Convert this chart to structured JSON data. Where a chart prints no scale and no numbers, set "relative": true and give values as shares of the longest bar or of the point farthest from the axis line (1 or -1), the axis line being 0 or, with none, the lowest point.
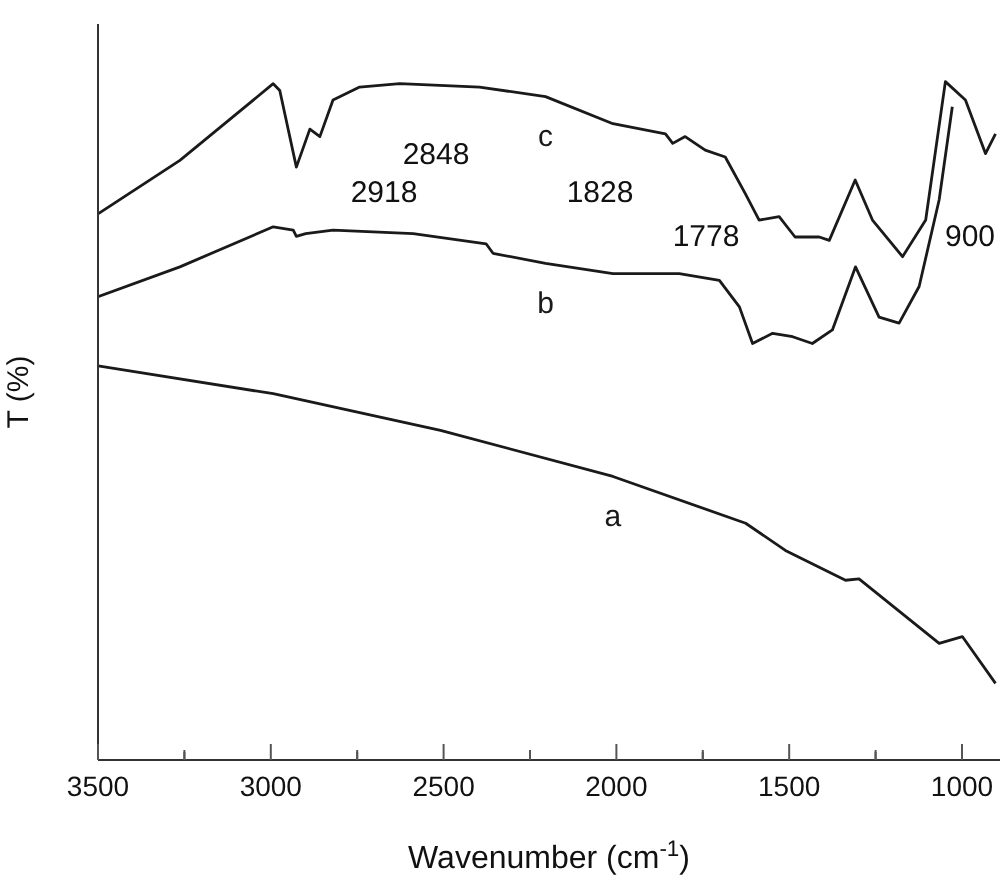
{
  "chart_data": {
    "type": "line",
    "relative": true,
    "xlabel": "Wavenumber (cm$^{-1}$)",
    "ylabel": "T (%)",
    "xlim": [
      3500,
      890
    ],
    "xticks": [
      3500,
      {
        "value": 3250,
        "label": null
      },
      3000,
      {
        "value": 2750,
        "label": null
      },
      2500,
      {
        "value": 2250,
        "label": null
      },
      2000,
      {
        "value": 1750,
        "label": null
      },
      1500,
      {
        "value": 1250,
        "label": null
      },
      1000
    ],
    "grid": false,
    "legend": false,
    "marker": "none",
    "line_style": "solid",
    "series": [
      {
        "name": "a",
        "color": "#1a1a1a",
        "x": [
          3500,
          2993,
          2509,
          2010,
          1626,
          1511,
          1337,
          1298,
          1066,
          999,
          903
        ],
        "values": [
          0.581,
          0.54,
          0.486,
          0.418,
          0.349,
          0.309,
          0.265,
          0.267,
          0.172,
          0.182,
          0.113
        ]
      },
      {
        "name": "b",
        "color": "#1a1a1a",
        "x": [
          3500,
          3263,
          2993,
          2935,
          2926,
          2899,
          2820,
          2588,
          2377,
          2357,
          2205,
          2010,
          1818,
          1702,
          1644,
          1606,
          1548,
          1490,
          1433,
          1375,
          1308,
          1240,
          1182,
          1124,
          1066,
          1028
        ],
        "values": [
          0.683,
          0.727,
          0.786,
          0.781,
          0.772,
          0.776,
          0.781,
          0.776,
          0.761,
          0.747,
          0.732,
          0.717,
          0.717,
          0.707,
          0.668,
          0.614,
          0.629,
          0.624,
          0.614,
          0.634,
          0.727,
          0.653,
          0.644,
          0.698,
          0.826,
          0.963
        ]
      },
      {
        "name": "c",
        "color": "#1a1a1a",
        "x": [
          3500,
          3263,
          2993,
          2974,
          2926,
          2887,
          2858,
          2820,
          2743,
          2627,
          2396,
          2205,
          2010,
          1858,
          1837,
          1801,
          1743,
          1685,
          1627,
          1587,
          1529,
          1483,
          1413,
          1384,
          1309,
          1259,
          1172,
          1105,
          1048,
          990,
          932,
          903
        ],
        "values": [
          0.805,
          0.884,
          0.997,
          0.987,
          0.874,
          0.93,
          0.919,
          0.973,
          0.992,
          0.997,
          0.992,
          0.978,
          0.938,
          0.923,
          0.909,
          0.919,
          0.899,
          0.889,
          0.835,
          0.796,
          0.801,
          0.771,
          0.771,
          0.766,
          0.855,
          0.796,
          0.742,
          0.796,
          1.0,
          0.973,
          0.894,
          0.923
        ]
      }
    ],
    "annotations": [
      "2848",
      "2918",
      "1828",
      "1778",
      "900"
    ]
  }
}
